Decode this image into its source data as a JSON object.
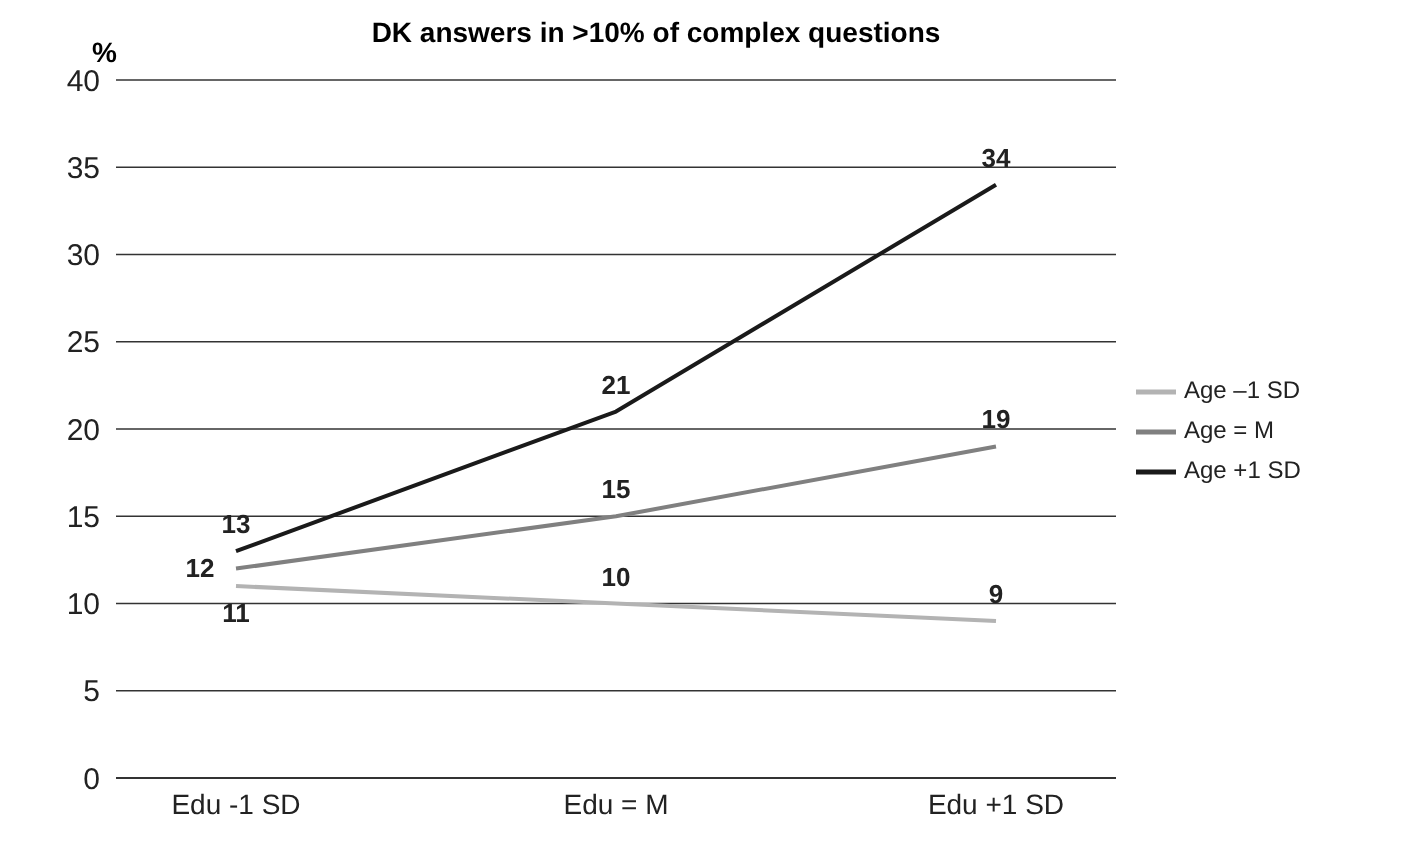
{
  "chart_data": {
    "type": "line",
    "title": "DK answers in >10% of complex questions",
    "ylabel": "%",
    "categories": [
      "Edu -1 SD",
      "Edu = M",
      "Edu +1 SD"
    ],
    "series": [
      {
        "name": "Age –1 SD",
        "color": "#b3b3b3",
        "values": [
          11,
          10,
          9
        ]
      },
      {
        "name": "Age = M",
        "color": "#808080",
        "values": [
          12,
          15,
          19
        ]
      },
      {
        "name": "Age +1 SD",
        "color": "#1a1a1a",
        "values": [
          13,
          21,
          34
        ]
      }
    ],
    "ylim": [
      0,
      40
    ],
    "yticks": [
      0,
      5,
      10,
      15,
      20,
      25,
      30,
      35,
      40
    ],
    "grid": "y",
    "legend": "right",
    "marker": "none",
    "line_style": "solid",
    "data_labels": true
  }
}
